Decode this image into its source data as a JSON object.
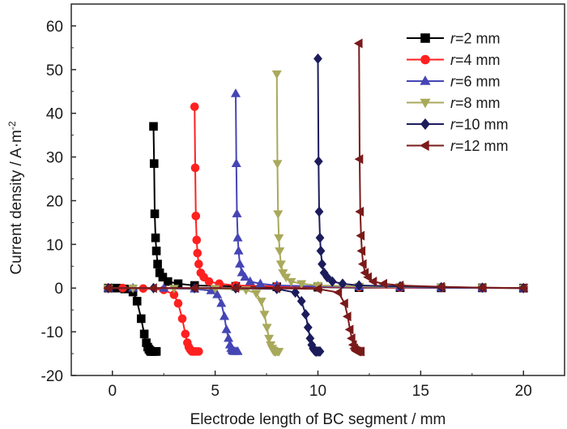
{
  "chart_data": {
    "type": "line",
    "xlabel": "Electrode length of BC segment / mm",
    "ylabel": "Current density  / A·m",
    "ylabel_superscript": "-2",
    "xlim": [
      -2,
      22
    ],
    "ylim": [
      -20,
      65
    ],
    "xticks": [
      0,
      5,
      10,
      15,
      20
    ],
    "yticks": [
      -20,
      -10,
      0,
      10,
      20,
      30,
      40,
      50,
      60
    ],
    "grid": false,
    "legend_position": "top-right",
    "series": [
      {
        "name": "r=2 mm",
        "r_value": "2",
        "color": "#000000",
        "marker": "square",
        "neg_x": [
          -0.2,
          0.2,
          0.6,
          1.0,
          1.2,
          1.4,
          1.55,
          1.65,
          1.72,
          1.78,
          1.83,
          1.87,
          1.91,
          1.94,
          2.0,
          2.08,
          2.14
        ],
        "neg_y": [
          0.0,
          0.0,
          -0.2,
          -0.9,
          -3.0,
          -7.0,
          -10.5,
          -12.5,
          -13.5,
          -14.0,
          -14.3,
          -14.5,
          -14.5,
          -14.5,
          -14.5,
          -14.5,
          -14.5
        ],
        "pos_x": [
          2.0,
          2.03,
          2.06,
          2.1,
          2.14,
          2.2,
          2.3,
          2.45,
          2.7,
          3.2,
          4.0,
          6.0,
          8.0,
          10.0,
          12.0,
          14.0,
          16.0,
          18.0,
          20.0
        ],
        "pos_y": [
          37.0,
          28.5,
          17.0,
          11.5,
          8.5,
          5.5,
          3.5,
          2.5,
          1.5,
          1.0,
          0.6,
          0.4,
          0.3,
          0.2,
          0.1,
          0.1,
          0.05,
          0.05,
          0.0
        ]
      },
      {
        "name": "r=4 mm",
        "r_value": "4",
        "color": "#ff2020",
        "marker": "circle",
        "neg_x": [
          -0.2,
          0.5,
          1.5,
          2.5,
          3.0,
          3.2,
          3.4,
          3.55,
          3.65,
          3.72,
          3.78,
          3.83,
          3.87,
          3.91,
          3.95,
          4.03,
          4.1,
          4.2
        ],
        "neg_y": [
          0.0,
          0.0,
          -0.1,
          -0.4,
          -1.5,
          -3.5,
          -7.0,
          -10.5,
          -12.5,
          -13.5,
          -14.0,
          -14.3,
          -14.5,
          -14.5,
          -14.5,
          -14.5,
          -14.5,
          -14.5
        ],
        "pos_x": [
          4.0,
          4.03,
          4.06,
          4.1,
          4.14,
          4.2,
          4.3,
          4.45,
          4.7,
          5.2,
          6.0,
          8.0,
          10.0,
          12.0,
          14.0,
          16.0,
          18.0,
          20.0
        ],
        "pos_y": [
          41.5,
          27.5,
          16.5,
          11.0,
          8.0,
          5.5,
          3.5,
          2.5,
          1.5,
          1.0,
          0.6,
          0.4,
          0.3,
          0.2,
          0.1,
          0.1,
          0.05,
          0.0
        ]
      },
      {
        "name": "r=6 mm",
        "r_value": "6",
        "color": "#4545b5",
        "marker": "triangle-up",
        "neg_x": [
          -0.2,
          1.0,
          2.5,
          4.0,
          4.8,
          5.1,
          5.3,
          5.45,
          5.55,
          5.65,
          5.72,
          5.78,
          5.83,
          5.87,
          5.91,
          5.95,
          6.03,
          6.1
        ],
        "neg_y": [
          0.0,
          0.0,
          -0.05,
          -0.2,
          -0.6,
          -1.5,
          -3.5,
          -6.5,
          -9.5,
          -11.5,
          -13.0,
          -13.8,
          -14.2,
          -14.4,
          -14.5,
          -14.5,
          -14.5,
          -14.5
        ],
        "pos_x": [
          6.0,
          6.03,
          6.06,
          6.1,
          6.14,
          6.2,
          6.3,
          6.45,
          6.7,
          7.2,
          8.0,
          10.0,
          12.0,
          14.0,
          16.0,
          18.0,
          20.0
        ],
        "pos_y": [
          44.5,
          28.5,
          17.0,
          11.5,
          8.5,
          5.5,
          3.5,
          2.5,
          1.5,
          1.0,
          0.6,
          0.4,
          0.3,
          0.2,
          0.1,
          0.05,
          0.0
        ]
      },
      {
        "name": "r=8 mm",
        "r_value": "8",
        "color": "#a9a95c",
        "marker": "triangle-down",
        "neg_x": [
          -0.2,
          1.0,
          3.0,
          5.0,
          6.5,
          7.0,
          7.25,
          7.4,
          7.52,
          7.62,
          7.7,
          7.77,
          7.82,
          7.86,
          7.9,
          7.95,
          8.03,
          8.1
        ],
        "neg_y": [
          0.0,
          0.0,
          -0.05,
          -0.1,
          -0.4,
          -1.2,
          -3.0,
          -6.0,
          -9.0,
          -11.5,
          -13.0,
          -13.8,
          -14.2,
          -14.4,
          -14.5,
          -14.5,
          -14.5,
          -14.5
        ],
        "pos_x": [
          8.0,
          8.03,
          8.06,
          8.1,
          8.14,
          8.2,
          8.3,
          8.45,
          8.7,
          9.2,
          10.0,
          12.0,
          14.0,
          16.0,
          18.0,
          20.0
        ],
        "pos_y": [
          49.0,
          28.5,
          17.0,
          11.5,
          8.5,
          5.5,
          3.5,
          2.5,
          1.5,
          1.0,
          0.6,
          0.4,
          0.3,
          0.2,
          0.1,
          0.0
        ]
      },
      {
        "name": "r=10 mm",
        "r_value": "10",
        "color": "#1c1c5c",
        "marker": "diamond",
        "neg_x": [
          -0.2,
          2.0,
          4.0,
          6.0,
          8.0,
          8.9,
          9.2,
          9.4,
          9.52,
          9.62,
          9.7,
          9.77,
          9.82,
          9.86,
          9.9,
          9.95,
          10.03,
          10.1
        ],
        "neg_y": [
          0.0,
          0.0,
          0.0,
          -0.05,
          -0.2,
          -1.0,
          -3.0,
          -6.0,
          -9.0,
          -11.5,
          -13.0,
          -13.8,
          -14.2,
          -14.4,
          -14.5,
          -14.5,
          -14.5,
          -14.5
        ],
        "pos_x": [
          10.0,
          10.03,
          10.06,
          10.1,
          10.14,
          10.2,
          10.3,
          10.45,
          10.7,
          11.2,
          12.0,
          14.0,
          16.0,
          18.0,
          20.0
        ],
        "pos_y": [
          52.5,
          29.0,
          17.5,
          11.5,
          8.5,
          5.5,
          3.5,
          2.5,
          1.5,
          1.0,
          0.6,
          0.4,
          0.2,
          0.1,
          0.0
        ]
      },
      {
        "name": "r=12 mm",
        "r_value": "12",
        "color": "#7a1a1a",
        "marker": "triangle-left",
        "neg_x": [
          -0.2,
          2.0,
          4.0,
          6.0,
          8.0,
          10.0,
          11.0,
          11.3,
          11.45,
          11.56,
          11.65,
          11.72,
          11.78,
          11.83,
          11.87,
          11.91,
          11.95,
          12.03,
          12.1
        ],
        "neg_y": [
          0.0,
          0.0,
          0.0,
          0.0,
          -0.05,
          -0.2,
          -1.0,
          -3.5,
          -6.5,
          -9.5,
          -11.5,
          -13.0,
          -13.8,
          -14.2,
          -14.4,
          -14.5,
          -14.5,
          -14.5,
          -14.5
        ],
        "pos_x": [
          12.0,
          12.03,
          12.06,
          12.1,
          12.14,
          12.2,
          12.3,
          12.45,
          12.7,
          13.2,
          14.0,
          16.0,
          18.0,
          20.0
        ],
        "pos_y": [
          56.0,
          29.5,
          17.5,
          12.0,
          8.5,
          5.5,
          3.5,
          2.5,
          1.5,
          1.0,
          0.6,
          0.3,
          0.1,
          0.0
        ]
      }
    ]
  }
}
